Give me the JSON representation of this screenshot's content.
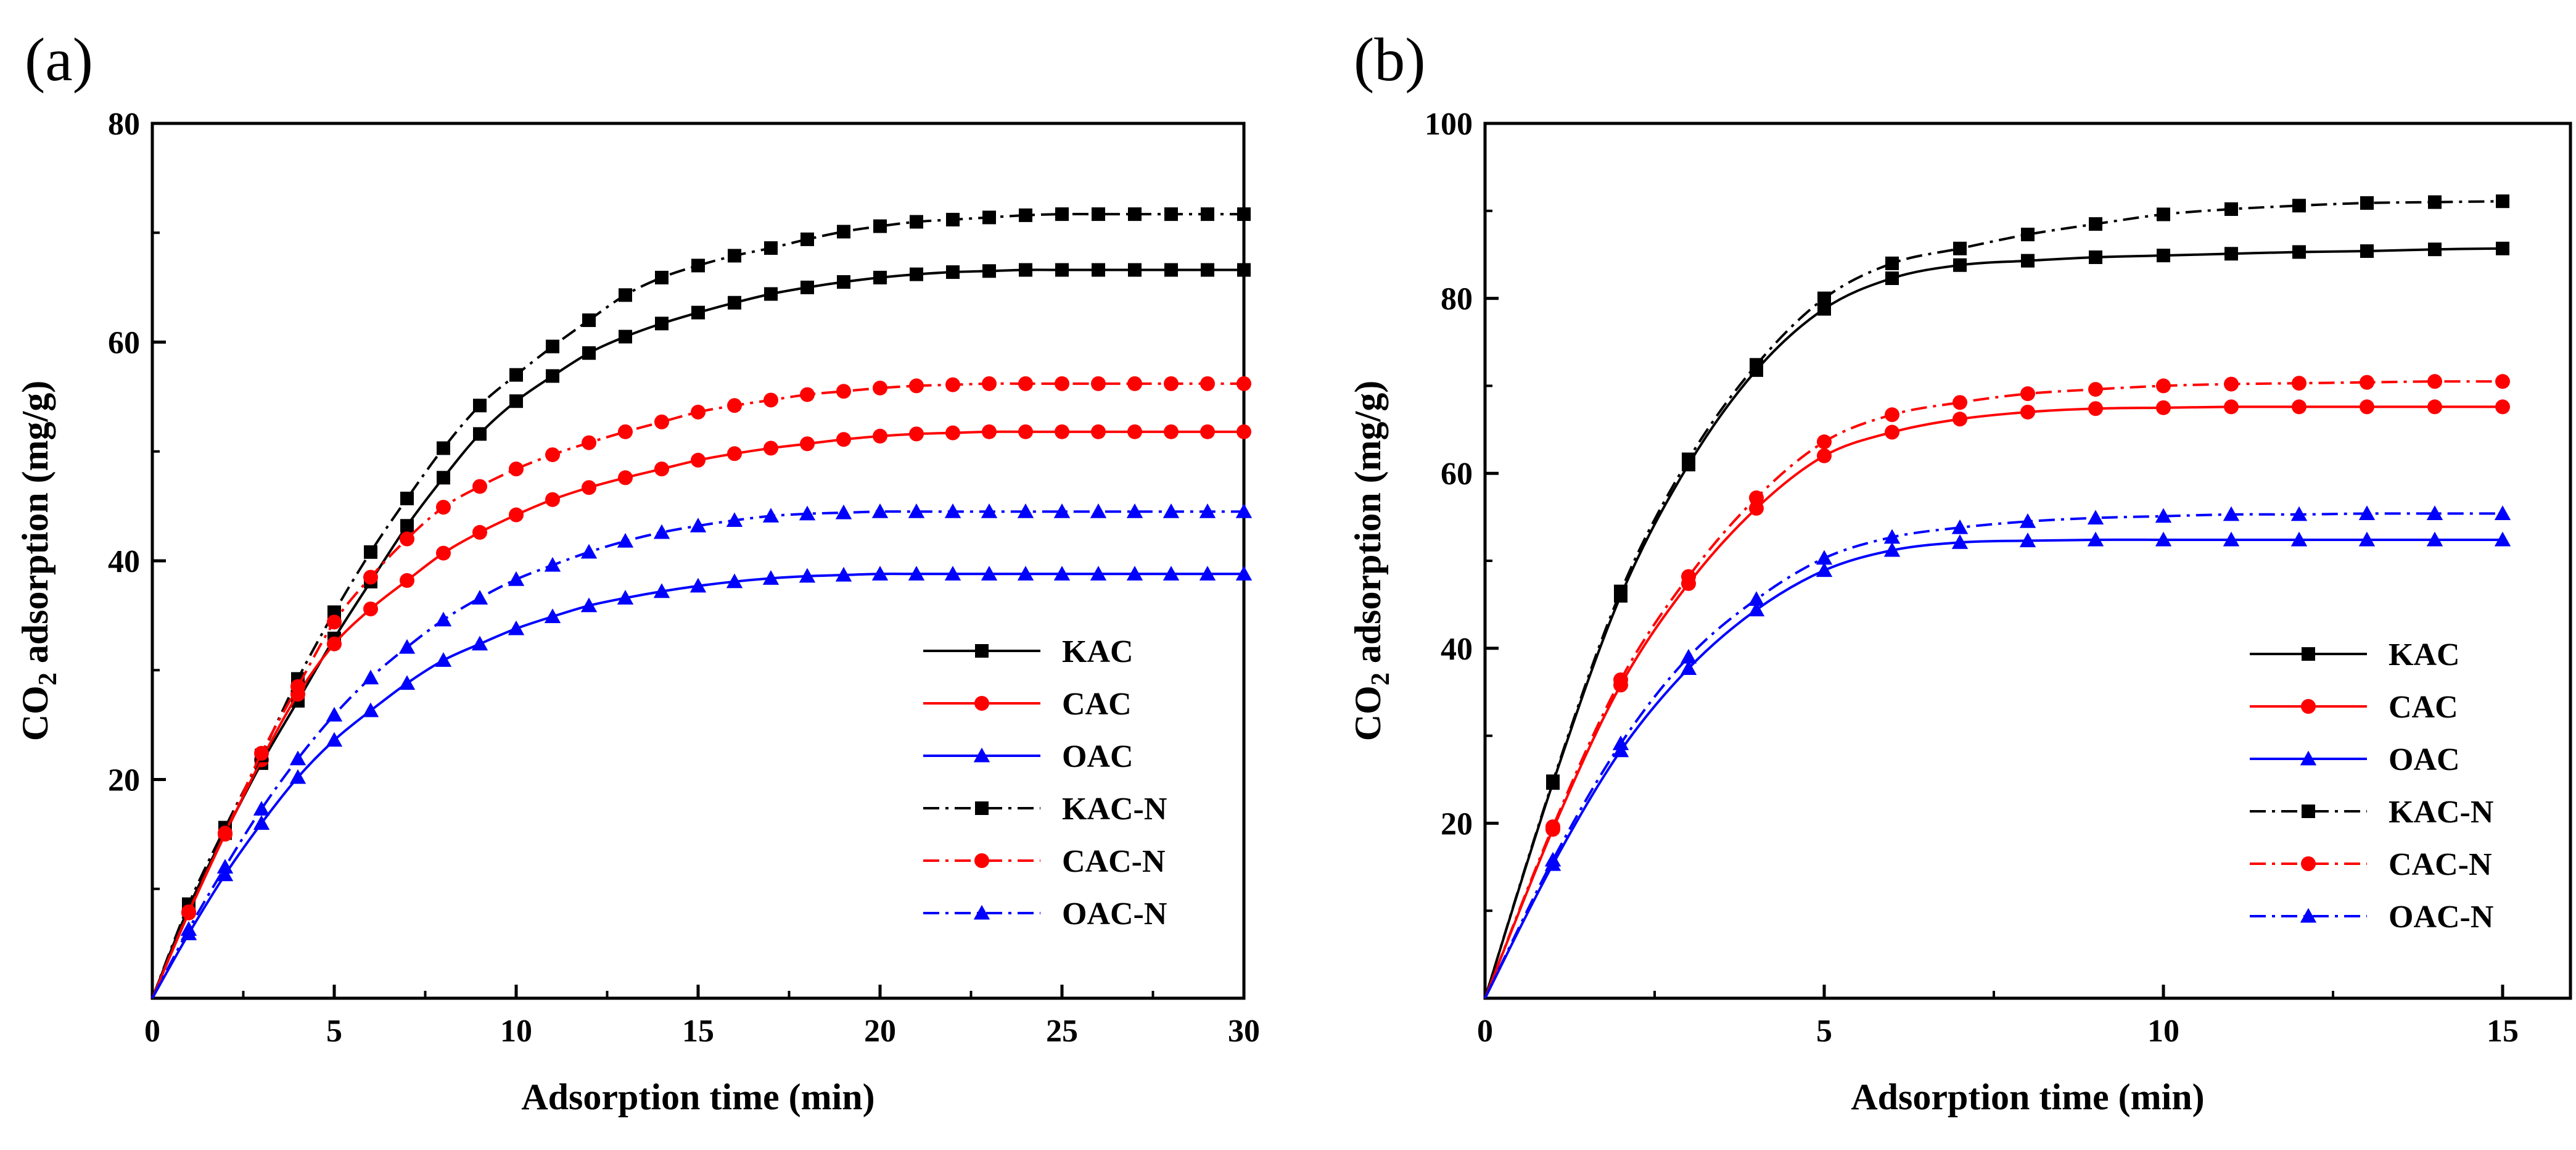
{
  "chart_data": [
    {
      "type": "line",
      "panel_label": "(a)",
      "xlabel": "Adsorption time (min)",
      "ylabel": "CO2 adsorption (mg/g)",
      "ylabel_main": "CO",
      "ylabel_sub": "2",
      "ylabel_rest": " adsorption (mg/g)",
      "xlim": [
        0,
        30
      ],
      "ylim": [
        0,
        80
      ],
      "xticks": [
        0,
        5,
        10,
        15,
        20,
        25,
        30
      ],
      "yticks": [
        20,
        40,
        60,
        80
      ],
      "grid": false,
      "legend_position": "bottom-right",
      "x": [
        0,
        1,
        2,
        3,
        4,
        5,
        6,
        7,
        8,
        9,
        10,
        11,
        12,
        13,
        14,
        15,
        16,
        17,
        18,
        19,
        20,
        21,
        22,
        23,
        24,
        25,
        26,
        27,
        28,
        29,
        30
      ],
      "series": [
        {
          "name": "KAC",
          "color": "#000000",
          "marker": "square",
          "dash": "solid",
          "values": [
            0,
            8.3,
            15.1,
            21.5,
            27.2,
            32.9,
            38.1,
            43.2,
            47.6,
            51.6,
            54.6,
            56.9,
            59.0,
            60.5,
            61.7,
            62.7,
            63.6,
            64.4,
            65.0,
            65.5,
            65.9,
            66.2,
            66.4,
            66.5,
            66.6,
            66.6,
            66.6,
            66.6,
            66.6,
            66.6,
            66.6
          ]
        },
        {
          "name": "CAC",
          "color": "#ff0000",
          "marker": "circle",
          "dash": "solid",
          "values": [
            0,
            7.8,
            15.0,
            21.8,
            27.8,
            32.4,
            35.6,
            38.2,
            40.7,
            42.6,
            44.2,
            45.6,
            46.7,
            47.6,
            48.4,
            49.2,
            49.8,
            50.3,
            50.7,
            51.1,
            51.4,
            51.6,
            51.7,
            51.8,
            51.8,
            51.8,
            51.8,
            51.8,
            51.8,
            51.8,
            51.8
          ]
        },
        {
          "name": "OAC",
          "color": "#0000ff",
          "marker": "triangle",
          "dash": "solid",
          "values": [
            0,
            5.9,
            11.3,
            16.0,
            20.2,
            23.6,
            26.3,
            28.8,
            30.9,
            32.4,
            33.8,
            34.9,
            35.9,
            36.6,
            37.2,
            37.7,
            38.1,
            38.4,
            38.6,
            38.7,
            38.8,
            38.8,
            38.8,
            38.8,
            38.8,
            38.8,
            38.8,
            38.8,
            38.8,
            38.8,
            38.8
          ]
        },
        {
          "name": "KAC-N",
          "color": "#000000",
          "marker": "square",
          "dash": "dashdot",
          "values": [
            0,
            8.6,
            15.6,
            22.2,
            29.2,
            35.3,
            40.8,
            45.7,
            50.3,
            54.2,
            57.0,
            59.6,
            62.0,
            64.3,
            65.9,
            67.0,
            67.9,
            68.6,
            69.4,
            70.1,
            70.6,
            71.0,
            71.2,
            71.4,
            71.6,
            71.7,
            71.7,
            71.7,
            71.7,
            71.7,
            71.7
          ]
        },
        {
          "name": "CAC-N",
          "color": "#ff0000",
          "marker": "circle",
          "dash": "dashdot",
          "values": [
            0,
            7.9,
            15.1,
            22.4,
            28.5,
            34.4,
            38.5,
            42.0,
            44.9,
            46.8,
            48.4,
            49.7,
            50.8,
            51.8,
            52.7,
            53.6,
            54.2,
            54.7,
            55.2,
            55.5,
            55.8,
            56.0,
            56.1,
            56.2,
            56.2,
            56.2,
            56.2,
            56.2,
            56.2,
            56.2,
            56.2
          ]
        },
        {
          "name": "OAC-N",
          "color": "#0000ff",
          "marker": "triangle",
          "dash": "dashdot",
          "values": [
            0,
            6.3,
            12.0,
            17.3,
            21.9,
            25.9,
            29.3,
            32.1,
            34.6,
            36.6,
            38.3,
            39.6,
            40.8,
            41.8,
            42.6,
            43.2,
            43.7,
            44.1,
            44.3,
            44.4,
            44.5,
            44.5,
            44.5,
            44.5,
            44.5,
            44.5,
            44.5,
            44.5,
            44.5,
            44.5,
            44.5
          ]
        }
      ]
    },
    {
      "type": "line",
      "panel_label": "(b)",
      "xlabel": "Adsorption time (min)",
      "ylabel": "CO2 adsorption (mg/g)",
      "ylabel_main": "CO",
      "ylabel_sub": "2",
      "ylabel_rest": " adsorption (mg/g)",
      "xlim": [
        0,
        16
      ],
      "ylim": [
        0,
        100
      ],
      "xticks": [
        0,
        5,
        10,
        15
      ],
      "yticks": [
        20,
        40,
        60,
        80,
        100
      ],
      "grid": false,
      "legend_position": "bottom-right",
      "x": [
        0,
        1,
        2,
        3,
        4,
        5,
        6,
        7,
        8,
        9,
        10,
        11,
        12,
        13,
        14,
        15
      ],
      "series": [
        {
          "name": "KAC",
          "color": "#000000",
          "marker": "square",
          "dash": "solid",
          "values": [
            0,
            24.6,
            46.0,
            61.0,
            71.8,
            78.8,
            82.3,
            83.8,
            84.3,
            84.7,
            84.9,
            85.1,
            85.3,
            85.4,
            85.6,
            85.7
          ]
        },
        {
          "name": "CAC",
          "color": "#ff0000",
          "marker": "circle",
          "dash": "solid",
          "values": [
            0,
            19.3,
            35.8,
            47.4,
            56.0,
            62.0,
            64.7,
            66.2,
            67.0,
            67.4,
            67.5,
            67.6,
            67.6,
            67.6,
            67.6,
            67.6
          ]
        },
        {
          "name": "OAC",
          "color": "#0000ff",
          "marker": "triangle",
          "dash": "solid",
          "values": [
            0,
            15.3,
            28.3,
            37.7,
            44.4,
            48.9,
            51.2,
            52.1,
            52.3,
            52.4,
            52.4,
            52.4,
            52.4,
            52.4,
            52.4,
            52.4
          ]
        },
        {
          "name": "KAC-N",
          "color": "#000000",
          "marker": "square",
          "dash": "dashdot",
          "values": [
            0,
            24.8,
            46.5,
            61.6,
            72.4,
            80.0,
            84.0,
            85.7,
            87.3,
            88.5,
            89.6,
            90.2,
            90.6,
            90.9,
            91.0,
            91.1
          ]
        },
        {
          "name": "CAC-N",
          "color": "#ff0000",
          "marker": "circle",
          "dash": "dashdot",
          "values": [
            0,
            19.6,
            36.4,
            48.2,
            57.2,
            63.6,
            66.7,
            68.1,
            69.1,
            69.6,
            70.0,
            70.2,
            70.3,
            70.4,
            70.5,
            70.5
          ]
        },
        {
          "name": "OAC-N",
          "color": "#0000ff",
          "marker": "triangle",
          "dash": "dashdot",
          "values": [
            0,
            15.8,
            29.1,
            39.0,
            45.6,
            50.3,
            52.7,
            53.8,
            54.5,
            54.9,
            55.1,
            55.3,
            55.3,
            55.4,
            55.4,
            55.4
          ]
        }
      ]
    }
  ]
}
